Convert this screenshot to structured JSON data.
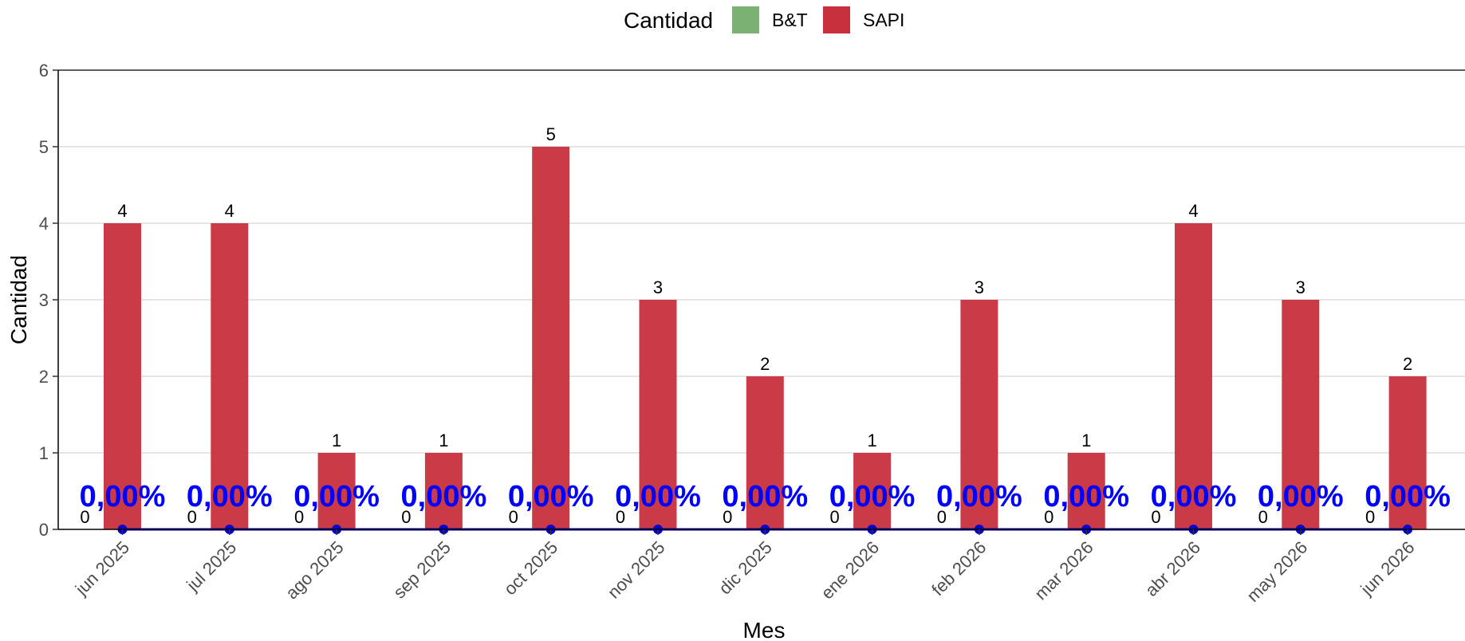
{
  "chart_data": {
    "type": "bar",
    "xlabel": "Mes",
    "ylabel": "Cantidad",
    "ylim": [
      0,
      6
    ],
    "yticks": [
      0,
      1,
      2,
      3,
      4,
      5,
      6
    ],
    "grid": "horizontal",
    "legend": {
      "title": "Cantidad",
      "position": "top",
      "entries": [
        {
          "name": "B&T",
          "color": "#7bb274"
        },
        {
          "name": "SAPI",
          "color": "#c8303d"
        }
      ]
    },
    "categories": [
      "jun 2025",
      "jul 2025",
      "ago 2025",
      "sep 2025",
      "oct 2025",
      "nov 2025",
      "dic 2025",
      "ene 2026",
      "feb 2026",
      "mar 2026",
      "abr 2026",
      "may 2026",
      "jun 2026"
    ],
    "series": [
      {
        "name": "B&T",
        "color": "#7bb274",
        "values": [
          0,
          0,
          0,
          0,
          0,
          0,
          0,
          0,
          0,
          0,
          0,
          0,
          0
        ]
      },
      {
        "name": "SAPI",
        "color": "#c8303d",
        "values": [
          4,
          4,
          1,
          1,
          5,
          3,
          2,
          1,
          3,
          1,
          4,
          3,
          2
        ]
      }
    ],
    "line": {
      "color": "#0000cc",
      "values": [
        0,
        0,
        0,
        0,
        0,
        0,
        0,
        0,
        0,
        0,
        0,
        0,
        0
      ],
      "labels": [
        "0,00%",
        "0,00%",
        "0,00%",
        "0,00%",
        "0,00%",
        "0,00%",
        "0,00%",
        "0,00%",
        "0,00%",
        "0,00%",
        "0,00%",
        "0,00%",
        "0,00%"
      ]
    }
  }
}
